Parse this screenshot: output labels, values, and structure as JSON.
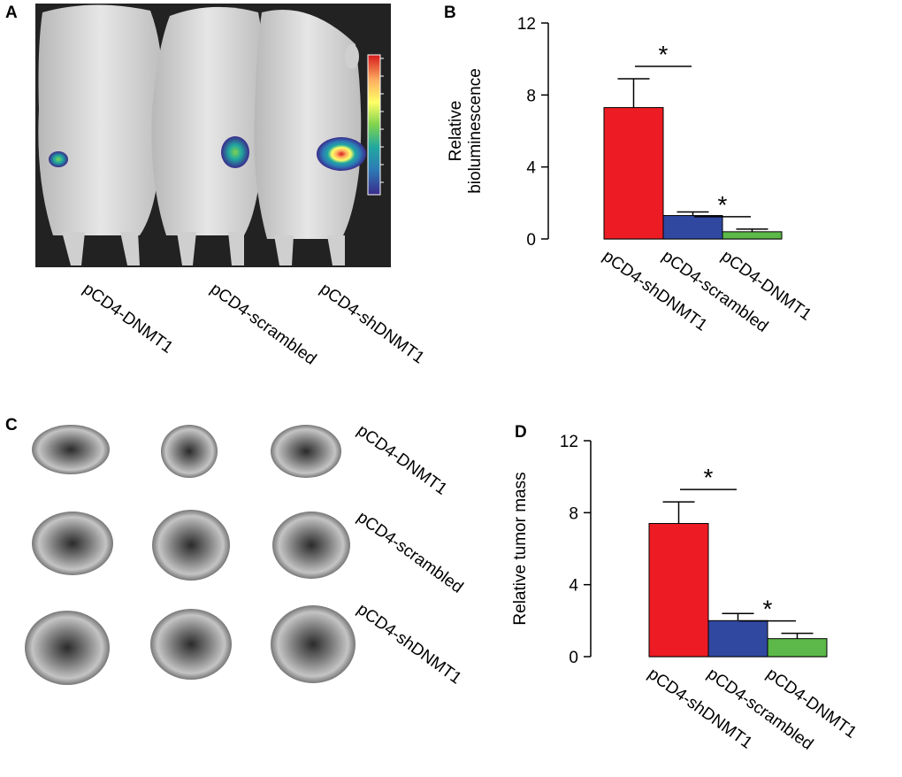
{
  "panels": {
    "a_letter": "A",
    "b_letter": "B",
    "c_letter": "C",
    "d_letter": "D"
  },
  "panel_a": {
    "labels": [
      "pCD4-DNMT1",
      "pCD4-scrambled",
      "pCD4-shDNMT1"
    ],
    "colorbar": [
      "#d7191c",
      "#fdae61",
      "#ffff66",
      "#7fd34e",
      "#21a8a0",
      "#2c7bb6",
      "#3a2a8c"
    ]
  },
  "panel_c": {
    "labels": [
      "pCD4-DNMT1",
      "pCD4-scrambled",
      "pCD4-shDNMT1"
    ]
  },
  "chart_data": [
    {
      "type": "bar",
      "panel": "B",
      "ylabel": [
        "Relative",
        "bioluminescence"
      ],
      "ylim": [
        0,
        12
      ],
      "yticks": [
        "0",
        "4",
        "8",
        "12"
      ],
      "categories": [
        "pCD4-shDNMT1",
        "pCD4-scrambled",
        "pCD4-DNMT1"
      ],
      "values": [
        7.3,
        1.3,
        0.4
      ],
      "errors": [
        1.6,
        0.2,
        0.15
      ],
      "colors": [
        "#ed1c24",
        "#3048a0",
        "#5cb848"
      ],
      "significance": [
        "*",
        "*"
      ]
    },
    {
      "type": "bar",
      "panel": "D",
      "ylabel": [
        "Relative tumor mass"
      ],
      "ylim": [
        0,
        12
      ],
      "yticks": [
        "0",
        "4",
        "8",
        "12"
      ],
      "categories": [
        "pCD4-shDNMT1",
        "pCD4-scrambled",
        "pCD4-DNMT1"
      ],
      "values": [
        7.4,
        2.0,
        1.0
      ],
      "errors": [
        1.2,
        0.4,
        0.3
      ],
      "colors": [
        "#ed1c24",
        "#3048a0",
        "#5cb848"
      ],
      "significance": [
        "*",
        "*"
      ]
    }
  ]
}
